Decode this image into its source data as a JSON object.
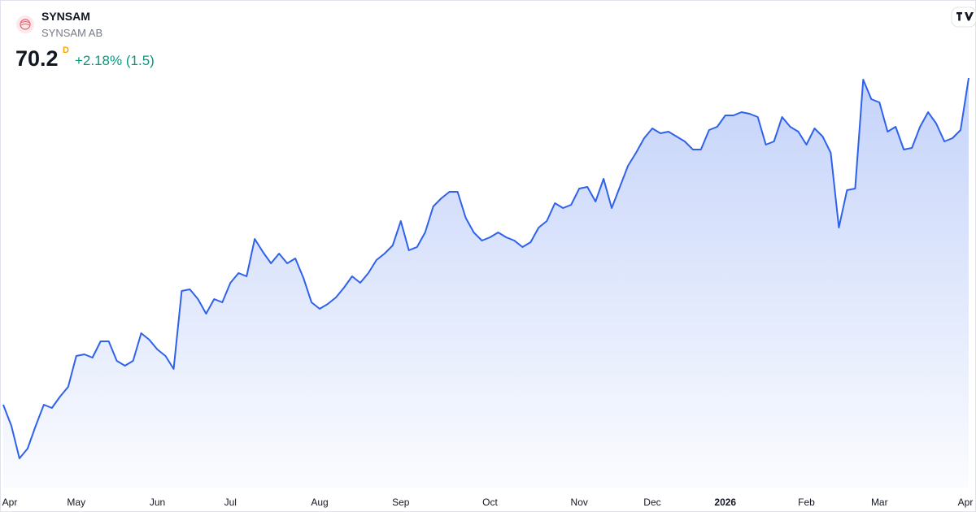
{
  "header": {
    "symbol": "SYNSAM",
    "name": "SYNSAM AB",
    "price": 70.2,
    "marker": "D",
    "change": "+2.18% (1.5)"
  },
  "chart_data": {
    "type": "area",
    "color": "#2f62ec",
    "ylim": [
      45,
      75
    ],
    "categories": [
      "Apr",
      null,
      null,
      null,
      null,
      null,
      null,
      null,
      null,
      "May",
      null,
      null,
      null,
      null,
      null,
      null,
      null,
      null,
      null,
      "Jun",
      null,
      null,
      null,
      null,
      null,
      null,
      null,
      null,
      "Jul",
      null,
      null,
      null,
      null,
      null,
      null,
      null,
      null,
      null,
      null,
      "Aug",
      null,
      null,
      null,
      null,
      null,
      null,
      null,
      null,
      null,
      "Sep",
      null,
      null,
      null,
      null,
      null,
      null,
      null,
      null,
      null,
      null,
      "Oct",
      null,
      null,
      null,
      null,
      null,
      null,
      null,
      null,
      null,
      null,
      "Nov",
      null,
      null,
      null,
      null,
      null,
      null,
      null,
      null,
      "Dec",
      null,
      null,
      null,
      null,
      null,
      null,
      null,
      null,
      "2026",
      null,
      null,
      null,
      null,
      null,
      null,
      null,
      null,
      null,
      "Feb",
      null,
      null,
      null,
      null,
      null,
      null,
      null,
      null,
      "Mar",
      null,
      null,
      null,
      null,
      null,
      null,
      null,
      null,
      null,
      null,
      "Apr"
    ],
    "values": [
      50.1,
      48.8,
      46.8,
      47.4,
      48.8,
      50.1,
      49.9,
      50.6,
      51.2,
      53.1,
      53.2,
      53.0,
      54.0,
      54.0,
      52.8,
      52.5,
      52.8,
      54.5,
      54.1,
      53.5,
      53.1,
      52.3,
      57.1,
      57.2,
      56.6,
      55.7,
      56.6,
      56.4,
      57.6,
      58.2,
      58.0,
      60.3,
      59.5,
      58.8,
      59.4,
      58.8,
      59.1,
      57.9,
      56.4,
      56.0,
      56.3,
      56.7,
      57.3,
      58.0,
      57.6,
      58.2,
      59.0,
      59.4,
      59.9,
      61.4,
      59.6,
      59.8,
      60.7,
      62.3,
      62.8,
      63.2,
      63.2,
      61.6,
      60.7,
      60.2,
      60.4,
      60.7,
      60.4,
      60.2,
      59.8,
      60.1,
      61.0,
      61.4,
      62.5,
      62.2,
      62.4,
      63.4,
      63.5,
      62.6,
      64.0,
      62.2,
      63.5,
      64.8,
      65.6,
      66.5,
      67.1,
      66.8,
      66.9,
      66.6,
      66.3,
      65.8,
      65.8,
      67.0,
      67.2,
      67.9,
      67.9,
      68.1,
      68.0,
      67.8,
      66.1,
      66.3,
      67.8,
      67.2,
      66.9,
      66.1,
      67.1,
      66.6,
      65.6,
      61.0,
      63.3,
      63.4,
      70.1,
      68.9,
      68.7,
      66.9,
      67.2,
      65.8,
      65.9,
      67.2,
      68.1,
      67.4,
      66.3,
      66.5,
      67.0,
      70.2
    ]
  }
}
